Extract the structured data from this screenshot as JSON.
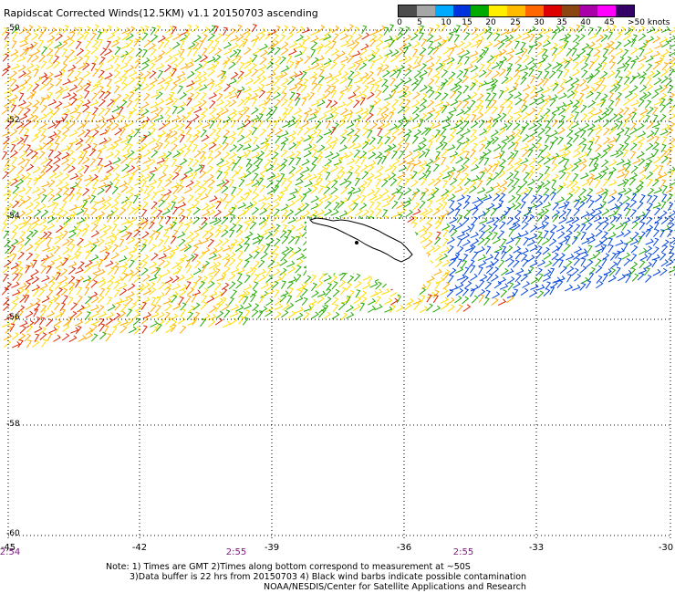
{
  "title": "Rapidscat Corrected Winds(12.5KM) v1.1 20150703 ascending",
  "colorbar": {
    "colors": [
      "#4d4d4d",
      "#a6a6a6",
      "#00aaff",
      "#0033dd",
      "#00aa00",
      "#ffee00",
      "#ffbb00",
      "#ff6600",
      "#dd0000",
      "#8b4513",
      "#aa00aa",
      "#ff00ff",
      "#330066"
    ],
    "labels": [
      "0",
      "5",
      "10",
      "15",
      "20",
      "25",
      "30",
      "35",
      "40",
      "45"
    ],
    "unit_label": ">50 knots"
  },
  "latitude_labels": [
    "-50",
    "-52",
    "-54",
    "-56",
    "-58",
    "-60"
  ],
  "longitude_labels": [
    "-45",
    "-42",
    "-39",
    "-36",
    "-33",
    "-30"
  ],
  "time_labels": [
    "2:54",
    "2:55",
    "2:55"
  ],
  "notes": {
    "line1": "Note: 1) Times are GMT 2)Times along bottom correspond to measurement at ~50S",
    "line2": "3)Data buffer is 22 hrs from 20150703 4) Black wind barbs indicate possible contamination",
    "line3": "NOAA/NESDIS/Center for Satellite Applications and Research"
  },
  "map": {
    "lat_range": [
      -60,
      -50
    ],
    "lon_range": [
      -45,
      -30
    ],
    "gridlines": true,
    "wind_region_colors": {
      "west_strong": "#dd2200",
      "yellow": "#ffdd00",
      "orange": "#ffaa00",
      "green": "#22aa00",
      "blue": "#0044dd"
    }
  }
}
